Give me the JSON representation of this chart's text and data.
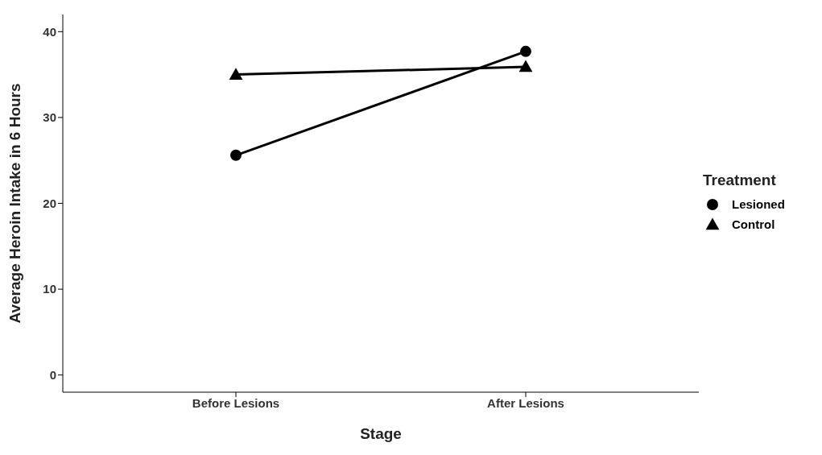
{
  "chart_data": {
    "type": "line",
    "xlabel": "Stage",
    "ylabel": "Average Heroin Intake in 6 Hours",
    "legend_title": "Treatment",
    "legend": "right",
    "grid": false,
    "line_style": "solid",
    "categories": [
      "Before Lesions",
      "After Lesions"
    ],
    "ylim": [
      -2,
      42
    ],
    "yticks": [
      0,
      10,
      20,
      30,
      40
    ],
    "series": [
      {
        "name": "Lesioned",
        "color": "#000000",
        "marker": "circle",
        "values": [
          25.6,
          37.7
        ]
      },
      {
        "name": "Control",
        "color": "#000000",
        "marker": "triangle",
        "values": [
          35.0,
          35.9
        ]
      }
    ]
  }
}
